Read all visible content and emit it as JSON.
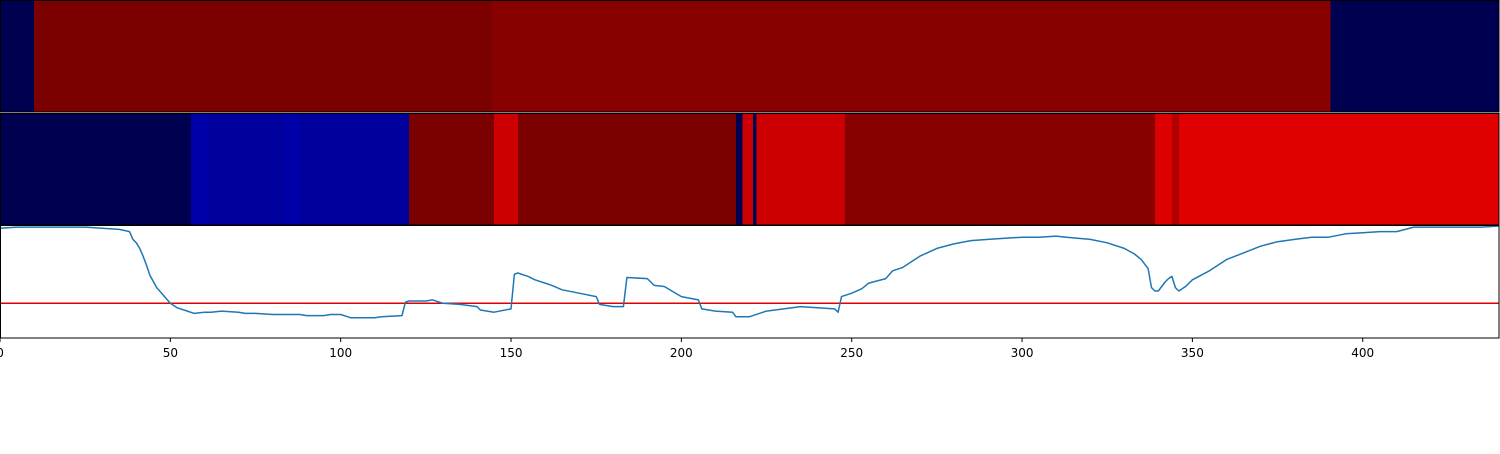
{
  "chart_data": [
    {
      "type": "heatmap",
      "segments": [
        {
          "x0": 0,
          "x1": 10,
          "color": "#000050"
        },
        {
          "x0": 10,
          "x1": 144.5,
          "color": "#7b0000"
        },
        {
          "x0": 144.5,
          "x1": 390.5,
          "color": "#880000"
        },
        {
          "x0": 390.5,
          "x1": 440,
          "color": "#000050"
        }
      ]
    },
    {
      "type": "heatmap",
      "segments": [
        {
          "x0": 0,
          "x1": 56,
          "color": "#000050"
        },
        {
          "x0": 56,
          "x1": 61,
          "color": "#0000a8"
        },
        {
          "x0": 61,
          "x1": 83,
          "color": "#00009c"
        },
        {
          "x0": 83,
          "x1": 88,
          "color": "#0000a8"
        },
        {
          "x0": 88,
          "x1": 120,
          "color": "#00009c"
        },
        {
          "x0": 120,
          "x1": 145,
          "color": "#7b0000"
        },
        {
          "x0": 145,
          "x1": 152,
          "color": "#cc0000"
        },
        {
          "x0": 152,
          "x1": 216,
          "color": "#7b0000"
        },
        {
          "x0": 216,
          "x1": 218,
          "color": "#000050"
        },
        {
          "x0": 218,
          "x1": 221,
          "color": "#cc0000"
        },
        {
          "x0": 221,
          "x1": 222,
          "color": "#000050"
        },
        {
          "x0": 222,
          "x1": 248,
          "color": "#cc0000"
        },
        {
          "x0": 248,
          "x1": 339,
          "color": "#880000"
        },
        {
          "x0": 339,
          "x1": 344,
          "color": "#dd0000"
        },
        {
          "x0": 344,
          "x1": 346,
          "color": "#b00000"
        },
        {
          "x0": 346,
          "x1": 440,
          "color": "#e00000"
        }
      ]
    },
    {
      "type": "line",
      "x": [
        0,
        5,
        10,
        15,
        20,
        25,
        30,
        35,
        38,
        39,
        40,
        41,
        42,
        43,
        44,
        46,
        48,
        50,
        52,
        55,
        57,
        60,
        62,
        65,
        70,
        72,
        75,
        80,
        85,
        88,
        90,
        95,
        97,
        100,
        102,
        103,
        105,
        110,
        112,
        118,
        119,
        120,
        125,
        127,
        130,
        135,
        140,
        141,
        145,
        150,
        151,
        152,
        155,
        157,
        160,
        162,
        165,
        170,
        175,
        176,
        180,
        183,
        184,
        190,
        192,
        195,
        200,
        205,
        206,
        210,
        215,
        216,
        220,
        225,
        230,
        235,
        240,
        245,
        246,
        247,
        250,
        253,
        255,
        260,
        262,
        265,
        270,
        275,
        280,
        285,
        290,
        295,
        300,
        305,
        310,
        313,
        320,
        325,
        330,
        333,
        335,
        337,
        338,
        339,
        340,
        342,
        343,
        344,
        345,
        346,
        348,
        350,
        355,
        360,
        365,
        370,
        375,
        380,
        385,
        390,
        395,
        400,
        405,
        410,
        415,
        420,
        425,
        430,
        435,
        440
      ],
      "y": [
        0.98,
        0.99,
        0.99,
        0.99,
        0.99,
        0.99,
        0.98,
        0.97,
        0.95,
        0.88,
        0.85,
        0.8,
        0.73,
        0.65,
        0.56,
        0.45,
        0.38,
        0.31,
        0.27,
        0.24,
        0.22,
        0.23,
        0.23,
        0.24,
        0.23,
        0.22,
        0.22,
        0.21,
        0.21,
        0.21,
        0.2,
        0.2,
        0.21,
        0.21,
        0.19,
        0.18,
        0.18,
        0.18,
        0.19,
        0.2,
        0.32,
        0.33,
        0.33,
        0.34,
        0.31,
        0.3,
        0.28,
        0.25,
        0.23,
        0.26,
        0.57,
        0.58,
        0.55,
        0.52,
        0.49,
        0.47,
        0.43,
        0.4,
        0.37,
        0.3,
        0.28,
        0.28,
        0.54,
        0.53,
        0.47,
        0.46,
        0.37,
        0.34,
        0.26,
        0.24,
        0.23,
        0.19,
        0.19,
        0.24,
        0.26,
        0.28,
        0.27,
        0.26,
        0.23,
        0.37,
        0.4,
        0.44,
        0.49,
        0.53,
        0.6,
        0.63,
        0.73,
        0.8,
        0.84,
        0.87,
        0.88,
        0.89,
        0.9,
        0.9,
        0.91,
        0.9,
        0.88,
        0.85,
        0.8,
        0.75,
        0.7,
        0.62,
        0.45,
        0.42,
        0.42,
        0.5,
        0.53,
        0.55,
        0.45,
        0.42,
        0.46,
        0.52,
        0.6,
        0.7,
        0.76,
        0.82,
        0.86,
        0.88,
        0.9,
        0.9,
        0.93,
        0.94,
        0.95,
        0.95,
        0.99,
        0.99,
        0.99,
        0.99,
        0.99,
        1.0
      ],
      "threshold": 0.31,
      "xlim": [
        0,
        440
      ],
      "ylim": [
        0,
        1
      ],
      "line_color": "#1f77b4",
      "threshold_color": "#e00000",
      "x_ticks": [
        {
          "v": 0,
          "label": "0"
        },
        {
          "v": 50,
          "label": "50"
        },
        {
          "v": 100,
          "label": "100"
        },
        {
          "v": 150,
          "label": "150"
        },
        {
          "v": 200,
          "label": "200"
        },
        {
          "v": 250,
          "label": "250"
        },
        {
          "v": 300,
          "label": "300"
        },
        {
          "v": 350,
          "label": "350"
        },
        {
          "v": 400,
          "label": "400"
        }
      ]
    }
  ]
}
